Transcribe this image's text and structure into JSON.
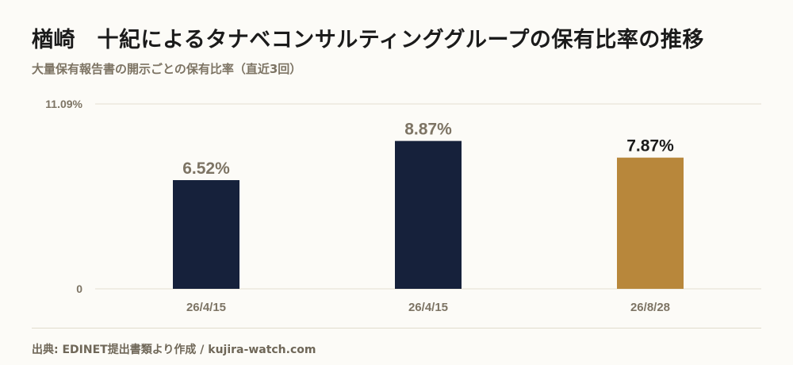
{
  "title": "楢崎　十紀によるタナベコンサルティンググループの保有比率の推移",
  "subtitle": "大量保有報告書の開示ごとの保有比率（直近3回）",
  "source": "出典: EDINET提出書類より作成 / kujira-watch.com",
  "colors": {
    "bar_default": "#16213b",
    "bar_latest": "#b8873b",
    "label_default": "#7d7464",
    "label_latest": "#1b1b1b",
    "grid": "#e4dfd0",
    "tick": "#7d7464"
  },
  "chart_data": {
    "type": "bar",
    "title": "楢崎　十紀によるタナベコンサルティンググループの保有比率の推移",
    "xlabel": "",
    "ylabel": "",
    "ylim": [
      0,
      11.09
    ],
    "yticks": [
      "0",
      "11.09%"
    ],
    "grid": true,
    "categories": [
      "26/4/15",
      "26/4/15",
      "26/8/28"
    ],
    "values": [
      6.52,
      8.87,
      7.87
    ],
    "value_labels": [
      "6.52%",
      "8.87%",
      "7.87%"
    ],
    "highlight_index": 2
  }
}
